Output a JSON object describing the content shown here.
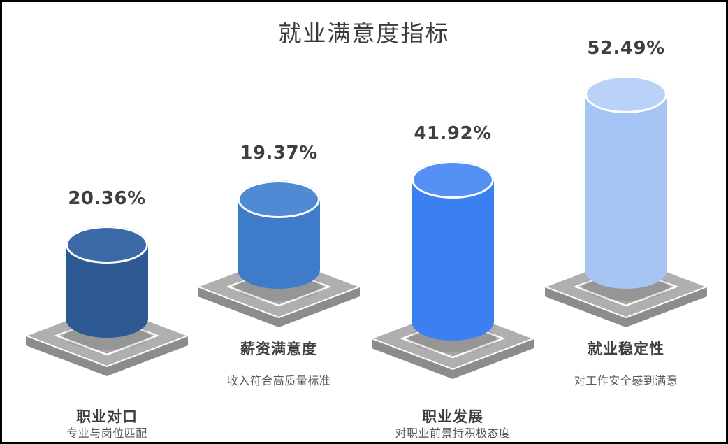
{
  "title": "就业满意度指标",
  "colors": {
    "background": "#ffffff",
    "frame_border": "#000000",
    "title_text": "#3b3b3b",
    "value_text": "#3f3f3f",
    "category_text": "#3f3f3f",
    "description_text": "#585858",
    "pedestal_top": "#afafaf",
    "pedestal_side": "#8c8c8c",
    "pedestal_inner": "#a7a7a7",
    "pedestal_highlight": "#ffffff",
    "cylinder_ring": "#ffffff"
  },
  "chart_data": {
    "type": "bar",
    "subtype": "3d-cylinder-infographic",
    "title": "就业满意度指标",
    "unit": "%",
    "categories": [
      "职业对口",
      "薪资满意度",
      "职业发展",
      "就业稳定性"
    ],
    "values": [
      20.36,
      19.37,
      41.92,
      52.49
    ],
    "value_labels": [
      "20.36%",
      "19.37%",
      "41.92%",
      "52.49%"
    ],
    "descriptions": [
      "专业与岗位匹配",
      "收入符合高质量标准",
      "对职业前景持积极态度",
      "对工作安全感到满意"
    ],
    "series_colors": [
      {
        "body": "#2e5a94",
        "top": "#3c69a8"
      },
      {
        "body": "#3e7cc9",
        "top": "#4f8bd4"
      },
      {
        "body": "#3c7ff0",
        "top": "#5590f4"
      },
      {
        "body": "#a6c4f4",
        "top": "#bad2f8"
      }
    ],
    "xlabel": "",
    "ylabel": "",
    "grid": false,
    "axis": "none",
    "legend_position": "none",
    "layout": "alternating-baseline"
  }
}
